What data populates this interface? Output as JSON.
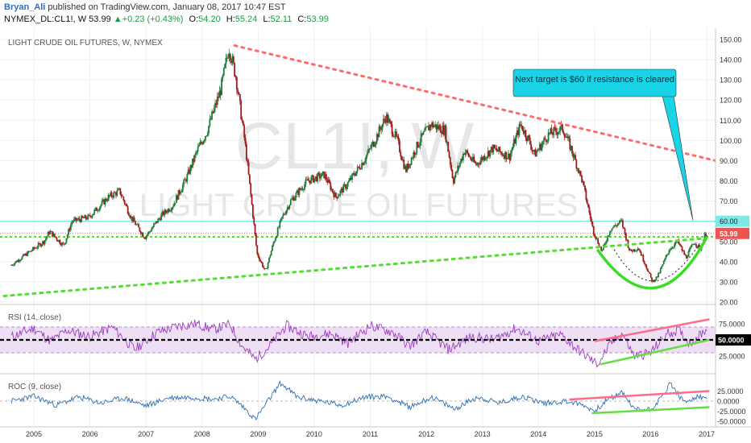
{
  "header": {
    "author": "Bryan_Ali",
    "published": "published on TradingView.com, January 08, 2017 10:47 EST",
    "symbol": "NYMEX_DL:CL1!, W",
    "last": "53.99",
    "change_arrow": "▲",
    "change": "+0.23 (+0.43%)",
    "open_label": "O:",
    "open": "54.20",
    "high_label": "H:",
    "high": "55.24",
    "low_label": "L:",
    "low": "52.11",
    "close_label": "C:",
    "close": "53.99"
  },
  "watermark": {
    "symbol": "CL1!, W",
    "name": "LIGHT CRUDE OIL FUTURES"
  },
  "chart_data": [
    {
      "type": "candlestick",
      "title": "LIGHT CRUDE OIL FUTURES, W, NYMEX",
      "xlabel": "",
      "ylabel": "",
      "x_ticks": [
        "2005",
        "2006",
        "2007",
        "2008",
        "2009",
        "2010",
        "2011",
        "2012",
        "2013",
        "2014",
        "2015",
        "2016",
        "2017"
      ],
      "y_ticks": [
        "150.00",
        "140.00",
        "130.00",
        "120.00",
        "110.00",
        "100.00",
        "90.00",
        "80.00",
        "70.00",
        "60.00",
        "50.00",
        "40.00",
        "30.00",
        "20.00"
      ],
      "ylim": [
        20,
        150
      ],
      "grid": true,
      "last_price_label": "53.99",
      "resistance_label": "60.00",
      "annotation": "Next target is $60 if resistance is cleared",
      "price_path": [
        [
          2004.6,
          38
        ],
        [
          2004.9,
          44
        ],
        [
          2005.2,
          50
        ],
        [
          2005.3,
          55
        ],
        [
          2005.55,
          48
        ],
        [
          2005.7,
          60
        ],
        [
          2006.0,
          62
        ],
        [
          2006.35,
          72
        ],
        [
          2006.55,
          75
        ],
        [
          2006.75,
          62
        ],
        [
          2007.0,
          52
        ],
        [
          2007.3,
          63
        ],
        [
          2007.5,
          68
        ],
        [
          2007.75,
          82
        ],
        [
          2007.95,
          96
        ],
        [
          2008.1,
          104
        ],
        [
          2008.35,
          125
        ],
        [
          2008.5,
          146
        ],
        [
          2008.62,
          132
        ],
        [
          2008.78,
          100
        ],
        [
          2008.9,
          70
        ],
        [
          2009.0,
          44
        ],
        [
          2009.15,
          35
        ],
        [
          2009.3,
          50
        ],
        [
          2009.45,
          62
        ],
        [
          2009.6,
          70
        ],
        [
          2009.9,
          80
        ],
        [
          2010.2,
          83
        ],
        [
          2010.4,
          72
        ],
        [
          2010.6,
          78
        ],
        [
          2010.9,
          90
        ],
        [
          2011.1,
          100
        ],
        [
          2011.3,
          112
        ],
        [
          2011.5,
          100
        ],
        [
          2011.65,
          85
        ],
        [
          2011.9,
          100
        ],
        [
          2012.1,
          108
        ],
        [
          2012.35,
          105
        ],
        [
          2012.5,
          80
        ],
        [
          2012.7,
          95
        ],
        [
          2012.9,
          88
        ],
        [
          2013.2,
          96
        ],
        [
          2013.5,
          92
        ],
        [
          2013.7,
          108
        ],
        [
          2013.85,
          100
        ],
        [
          2013.95,
          93
        ],
        [
          2014.2,
          103
        ],
        [
          2014.45,
          106
        ],
        [
          2014.6,
          96
        ],
        [
          2014.8,
          80
        ],
        [
          2015.0,
          55
        ],
        [
          2015.15,
          45
        ],
        [
          2015.3,
          56
        ],
        [
          2015.5,
          60
        ],
        [
          2015.65,
          45
        ],
        [
          2015.8,
          47
        ],
        [
          2015.95,
          37
        ],
        [
          2016.05,
          30
        ],
        [
          2016.15,
          33
        ],
        [
          2016.35,
          46
        ],
        [
          2016.5,
          50
        ],
        [
          2016.65,
          42
        ],
        [
          2016.8,
          50
        ],
        [
          2016.9,
          46
        ],
        [
          2017.0,
          54
        ]
      ]
    },
    {
      "type": "line",
      "title": "RSI (14, close)",
      "y_ticks": [
        "75.0000",
        "25.0000"
      ],
      "value_label": "50.0000",
      "ylim": [
        0,
        100
      ],
      "levels": [
        30,
        50,
        70
      ],
      "path": [
        [
          2004.6,
          55
        ],
        [
          2005.0,
          68
        ],
        [
          2005.3,
          48
        ],
        [
          2005.6,
          65
        ],
        [
          2006.0,
          55
        ],
        [
          2006.4,
          70
        ],
        [
          2006.8,
          35
        ],
        [
          2007.2,
          62
        ],
        [
          2007.6,
          72
        ],
        [
          2007.9,
          75
        ],
        [
          2008.2,
          66
        ],
        [
          2008.5,
          74
        ],
        [
          2008.7,
          42
        ],
        [
          2008.95,
          20
        ],
        [
          2009.2,
          40
        ],
        [
          2009.5,
          72
        ],
        [
          2009.9,
          55
        ],
        [
          2010.3,
          60
        ],
        [
          2010.6,
          45
        ],
        [
          2011.0,
          72
        ],
        [
          2011.4,
          62
        ],
        [
          2011.7,
          40
        ],
        [
          2012.0,
          62
        ],
        [
          2012.4,
          35
        ],
        [
          2012.8,
          55
        ],
        [
          2013.2,
          50
        ],
        [
          2013.6,
          68
        ],
        [
          2014.0,
          48
        ],
        [
          2014.4,
          58
        ],
        [
          2014.7,
          35
        ],
        [
          2015.05,
          12
        ],
        [
          2015.3,
          45
        ],
        [
          2015.5,
          60
        ],
        [
          2015.7,
          25
        ],
        [
          2016.0,
          30
        ],
        [
          2016.3,
          60
        ],
        [
          2016.5,
          65
        ],
        [
          2016.7,
          45
        ],
        [
          2016.85,
          55
        ],
        [
          2017.0,
          68
        ]
      ]
    },
    {
      "type": "line",
      "title": "ROC (9, close)",
      "y_ticks": [
        "25.0000",
        "0.0000",
        "-25.0000",
        "-50.0000"
      ],
      "ylim": [
        -60,
        60
      ],
      "path": [
        [
          2004.6,
          0
        ],
        [
          2005.0,
          12
        ],
        [
          2005.4,
          -10
        ],
        [
          2005.8,
          10
        ],
        [
          2006.2,
          -5
        ],
        [
          2006.6,
          8
        ],
        [
          2007.0,
          -12
        ],
        [
          2007.4,
          8
        ],
        [
          2007.8,
          10
        ],
        [
          2008.2,
          5
        ],
        [
          2008.5,
          12
        ],
        [
          2008.7,
          -10
        ],
        [
          2008.95,
          -45
        ],
        [
          2009.2,
          5
        ],
        [
          2009.4,
          45
        ],
        [
          2009.7,
          10
        ],
        [
          2010.1,
          0
        ],
        [
          2010.5,
          -10
        ],
        [
          2010.9,
          10
        ],
        [
          2011.3,
          12
        ],
        [
          2011.7,
          -15
        ],
        [
          2012.1,
          10
        ],
        [
          2012.5,
          -20
        ],
        [
          2012.9,
          10
        ],
        [
          2013.3,
          -5
        ],
        [
          2013.7,
          12
        ],
        [
          2014.1,
          -5
        ],
        [
          2014.5,
          0
        ],
        [
          2014.8,
          -10
        ],
        [
          2015.0,
          -25
        ],
        [
          2015.2,
          0
        ],
        [
          2015.5,
          22
        ],
        [
          2015.7,
          -20
        ],
        [
          2016.0,
          -20
        ],
        [
          2016.2,
          10
        ],
        [
          2016.35,
          45
        ],
        [
          2016.6,
          -5
        ],
        [
          2016.8,
          10
        ],
        [
          2017.0,
          8
        ]
      ]
    }
  ],
  "colors": {
    "bull": "#1f7a3a",
    "bear": "#a11b1b",
    "resistance": "#ff6b6b",
    "support": "#55dd33",
    "horizontal_60": "#7ee9e9",
    "price_label": "#ef5350",
    "rsi": "#9b3fbf",
    "roc": "#2f6fb0",
    "rsi_band": "#e8d4f0",
    "annotation_bg": "#19d3e6"
  }
}
